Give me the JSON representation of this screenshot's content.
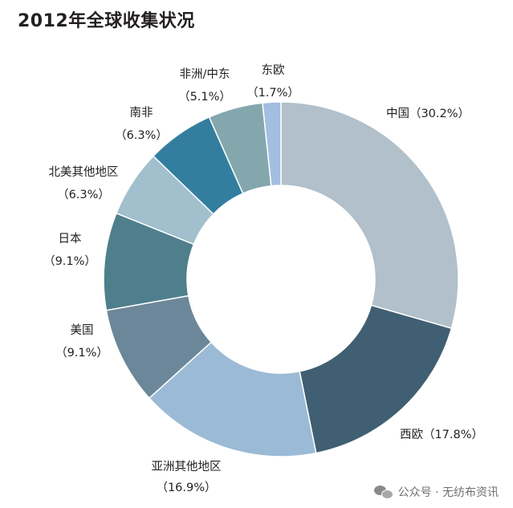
{
  "chart_data": {
    "type": "pie",
    "title": "2012年全球收集状况",
    "categories": [
      "中国",
      "西欧",
      "亚洲其他地区",
      "美国",
      "日本",
      "北美其他地区",
      "南非",
      "非洲/中东",
      "东欧"
    ],
    "values": [
      30.2,
      17.8,
      16.9,
      9.1,
      9.1,
      6.3,
      6.3,
      5.1,
      1.7
    ],
    "unit": "%",
    "donut": true,
    "start_angle": "12 o'clock, clockwise",
    "slices": [
      {
        "name": "中国",
        "value_label": "（30.2%）",
        "label": "中国（30.2%）",
        "color": "#b1c0ca"
      },
      {
        "name": "西欧",
        "value_label": "（17.8%）",
        "label": "西欧（17.8%）",
        "color": "#405f72"
      },
      {
        "name": "亚洲其他地区",
        "value_label": "（16.9%）",
        "color": "#9bbad5"
      },
      {
        "name": "美国",
        "value_label": "（9.1%）",
        "color": "#6c8799"
      },
      {
        "name": "日本",
        "value_label": "（9.1%）",
        "color": "#4f7f8c"
      },
      {
        "name": "北美其他地区",
        "value_label": "（6.3%）",
        "color": "#a1bfcd"
      },
      {
        "name": "南非",
        "value_label": "（6.3%）",
        "color": "#337e9f"
      },
      {
        "name": "非洲/中东",
        "value_label": "（5.1%）",
        "color": "#83a7ad"
      },
      {
        "name": "东欧",
        "value_label": "（1.7%）",
        "color": "#a2bee0"
      }
    ]
  },
  "watermark": {
    "text": "公众号 · 无纺布资讯",
    "icon": "wechat-icon"
  }
}
